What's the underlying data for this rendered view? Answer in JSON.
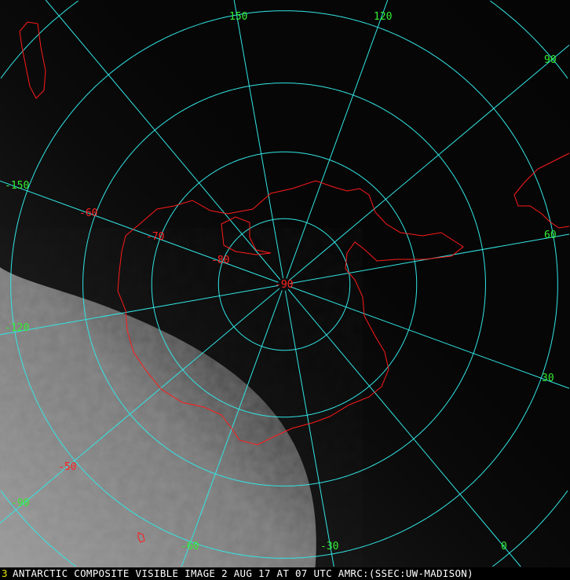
{
  "caption": "ANTARCTIC COMPOSITE VISIBLE IMAGE 2 AUG 17 AT 07 UTC AMRC:(SSEC:UW-MADISON)",
  "caption_marker": "3",
  "colors": {
    "grid": "#33e5e5",
    "coastline": "#ff1a1a",
    "longitude_label": "#33ee33",
    "latitude_label": "#ff2222",
    "caption_text": "#ffffff"
  },
  "longitude_labels": [
    "150",
    "120",
    "90",
    "60",
    "30",
    "0",
    "-30",
    "-60",
    "-90",
    "-120",
    "-150"
  ],
  "latitude_labels": [
    "-50",
    "-60",
    "-70",
    "-80",
    "-90"
  ]
}
